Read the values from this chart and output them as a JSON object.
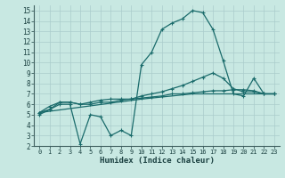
{
  "xlabel": "Humidex (Indice chaleur)",
  "xlim": [
    -0.5,
    23.5
  ],
  "ylim": [
    2,
    15.5
  ],
  "xticks": [
    0,
    1,
    2,
    3,
    4,
    5,
    6,
    7,
    8,
    9,
    10,
    11,
    12,
    13,
    14,
    15,
    16,
    17,
    18,
    19,
    20,
    21,
    22,
    23
  ],
  "yticks": [
    2,
    3,
    4,
    5,
    6,
    7,
    8,
    9,
    10,
    11,
    12,
    13,
    14,
    15
  ],
  "bg_color": "#c8e8e2",
  "line_color": "#1a6b6b",
  "grid_color": "#aacccc",
  "line1_x": [
    0,
    1,
    2,
    3,
    4,
    5,
    6,
    7,
    8,
    9,
    10,
    11,
    12,
    13,
    14,
    15,
    16,
    17,
    18,
    19,
    20,
    21,
    22,
    23
  ],
  "line1_y": [
    5.0,
    5.5,
    6.0,
    6.0,
    2.2,
    5.0,
    4.8,
    3.0,
    3.5,
    3.0,
    9.8,
    11.0,
    13.2,
    13.8,
    14.2,
    15.0,
    14.8,
    13.2,
    10.2,
    7.0,
    6.8,
    8.5,
    7.0,
    7.0
  ],
  "line2_x": [
    0,
    1,
    2,
    3,
    4,
    5,
    6,
    7,
    8,
    9,
    10,
    11,
    12,
    13,
    14,
    15,
    16,
    17,
    18,
    19,
    20,
    21,
    22,
    23
  ],
  "line2_y": [
    5.2,
    5.8,
    6.2,
    6.2,
    6.0,
    6.0,
    6.2,
    6.2,
    6.4,
    6.5,
    6.8,
    7.0,
    7.2,
    7.5,
    7.8,
    8.2,
    8.6,
    9.0,
    8.5,
    7.5,
    7.2,
    7.2,
    7.0,
    7.0
  ],
  "line3_x": [
    0,
    1,
    2,
    3,
    4,
    5,
    6,
    7,
    8,
    9,
    10,
    11,
    12,
    13,
    14,
    15,
    16,
    17,
    18,
    19,
    20,
    21,
    22,
    23
  ],
  "line3_y": [
    5.2,
    5.5,
    6.2,
    6.2,
    6.0,
    6.2,
    6.4,
    6.5,
    6.5,
    6.5,
    6.6,
    6.7,
    6.8,
    7.0,
    7.0,
    7.1,
    7.2,
    7.3,
    7.3,
    7.4,
    7.4,
    7.3,
    7.0,
    7.0
  ],
  "line4_x": [
    0,
    10,
    15,
    23
  ],
  "line4_y": [
    5.2,
    6.5,
    7.0,
    7.0
  ]
}
